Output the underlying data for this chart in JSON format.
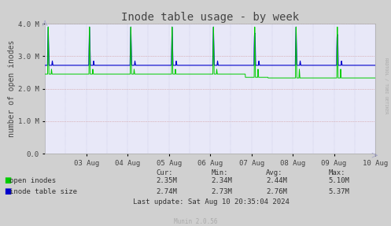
{
  "title": "Inode table usage - by week",
  "ylabel": "number of open inodes",
  "outer_bg_color": "#d0d0d0",
  "plot_bg_color": "#e8e8f8",
  "ylim": [
    0,
    4000000
  ],
  "yticks": [
    0.0,
    1000000,
    2000000,
    3000000,
    4000000
  ],
  "ytick_labels": [
    "0.0",
    "1.0 M",
    "2.0 M",
    "3.0 M",
    "4.0 M"
  ],
  "xtick_labels": [
    "03 Aug",
    "04 Aug",
    "05 Aug",
    "06 Aug",
    "07 Aug",
    "08 Aug",
    "09 Aug",
    "10 Aug"
  ],
  "green_color": "#00cc00",
  "blue_color": "#0000cc",
  "green_base": 2450000,
  "blue_base": 2720000,
  "legend_labels": [
    "open inodes",
    "inode table size"
  ],
  "footer_cur_header": "Cur:",
  "footer_min_header": "Min:",
  "footer_avg_header": "Avg:",
  "footer_max_header": "Max:",
  "footer_green_cur": "2.35M",
  "footer_green_min": "2.34M",
  "footer_green_avg": "2.44M",
  "footer_green_max": "5.10M",
  "footer_blue_cur": "2.74M",
  "footer_blue_min": "2.73M",
  "footer_blue_avg": "2.76M",
  "footer_blue_max": "5.37M",
  "footer_lastupdate": "Last update: Sat Aug 10 20:35:04 2024",
  "munin_text": "Munin 2.0.56",
  "rrdtool_text": "RRDTOOL / TOBI OETIKER",
  "title_fontsize": 10,
  "axis_fontsize": 7,
  "tick_fontsize": 6.5,
  "legend_fontsize": 7,
  "footer_fontsize": 6.5
}
